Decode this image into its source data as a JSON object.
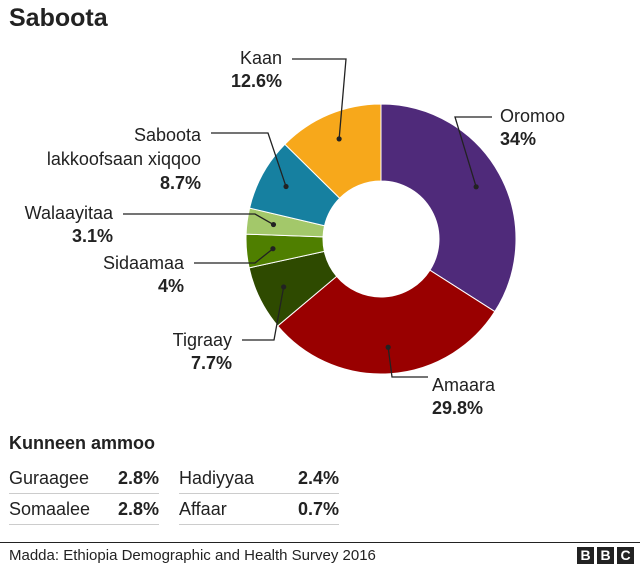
{
  "title": "Saboota",
  "chart_data": {
    "type": "pie",
    "donut": true,
    "slices": [
      {
        "name": "Oromoo",
        "value": 34,
        "label": "34%",
        "color": "#4f2a7a"
      },
      {
        "name": "Amaara",
        "value": 29.8,
        "label": "29.8%",
        "color": "#990000"
      },
      {
        "name": "Tigraay",
        "value": 7.7,
        "label": "7.7%",
        "color": "#2e4a00"
      },
      {
        "name": "Sidaamaa",
        "value": 4,
        "label": "4%",
        "color": "#4f7f00"
      },
      {
        "name": "Walaayitaa",
        "value": 3.1,
        "label": "3.1%",
        "color": "#a3c86a"
      },
      {
        "name": "Saboota lakkoofsaan xiqqoo",
        "value": 8.7,
        "label": "8.7%",
        "color": "#1680a0"
      },
      {
        "name": "Kaan",
        "value": 12.6,
        "label": "12.6%",
        "color": "#f7a81b"
      }
    ]
  },
  "others": {
    "heading": "Kunneen ammoo",
    "items": [
      {
        "name": "Guraagee",
        "value": "2.8%"
      },
      {
        "name": "Hadiyyaa",
        "value": "2.4%"
      },
      {
        "name": "Somaalee",
        "value": "2.8%"
      },
      {
        "name": "Affaar",
        "value": "0.7%"
      }
    ]
  },
  "source": "Madda: Ethiopia Demographic and Health Survey 2016",
  "brand": [
    "B",
    "B",
    "C"
  ]
}
